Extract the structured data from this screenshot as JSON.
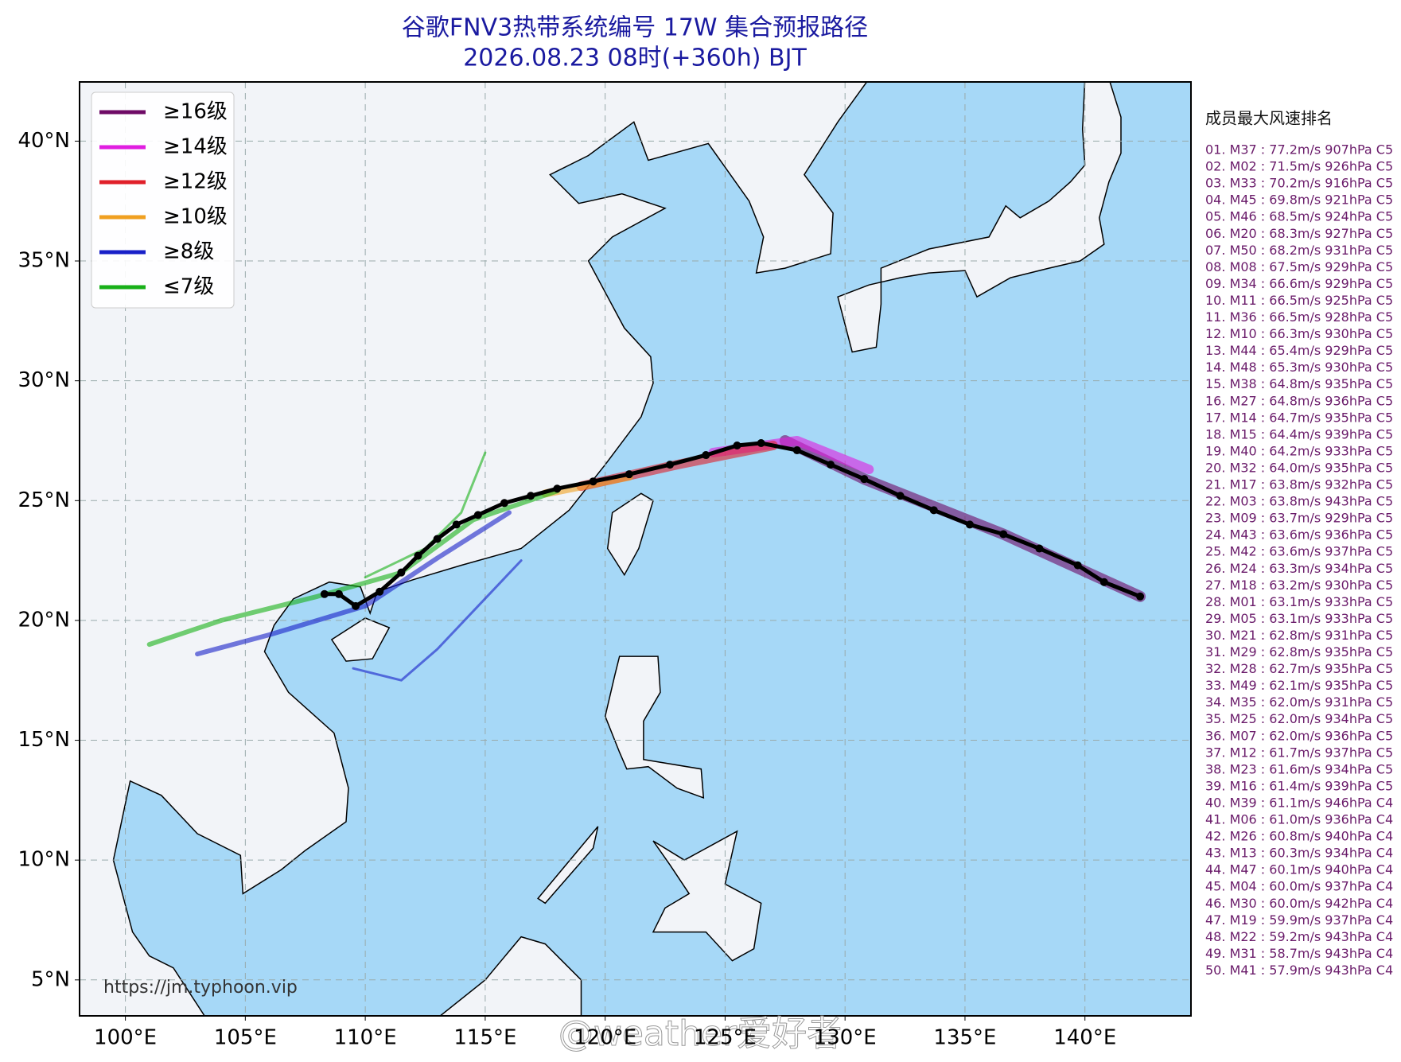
{
  "header": {
    "title": "谷歌FNV3热带系统编号 17W 集合预报路径",
    "subtitle": "2026.08.23 08时(+360h) BJT"
  },
  "map": {
    "xlim": [
      98.09,
      144.42
    ],
    "ylim": [
      3.5,
      42.47
    ],
    "xticks": [
      {
        "value": 100,
        "label": "100°E"
      },
      {
        "value": 105,
        "label": "105°E"
      },
      {
        "value": 110,
        "label": "110°E"
      },
      {
        "value": 115,
        "label": "115°E"
      },
      {
        "value": 120,
        "label": "120°E"
      },
      {
        "value": 125,
        "label": "125°E"
      },
      {
        "value": 130,
        "label": "130°E"
      },
      {
        "value": 135,
        "label": "135°E"
      },
      {
        "value": 140,
        "label": "140°E"
      }
    ],
    "yticks": [
      {
        "value": 5,
        "label": "5°N"
      },
      {
        "value": 10,
        "label": "10°N"
      },
      {
        "value": 15,
        "label": "15°N"
      },
      {
        "value": 20,
        "label": "20°N"
      },
      {
        "value": 25,
        "label": "25°N"
      },
      {
        "value": 30,
        "label": "30°N"
      },
      {
        "value": 35,
        "label": "35°N"
      },
      {
        "value": 40,
        "label": "40°N"
      }
    ],
    "mean_track": {
      "lon": [
        142.3,
        140.8,
        139.7,
        138.1,
        136.6,
        135.2,
        133.7,
        132.3,
        130.8,
        129.4,
        128.0,
        126.5,
        125.5,
        124.2,
        122.7,
        121.0,
        119.5,
        118.0,
        116.9,
        115.8,
        114.7,
        113.8,
        113.0,
        112.2,
        111.5,
        110.6,
        109.6,
        108.9,
        108.3
      ],
      "lat": [
        21.0,
        21.6,
        22.3,
        23.0,
        23.6,
        24.0,
        24.6,
        25.2,
        25.9,
        26.5,
        27.1,
        27.4,
        27.3,
        26.9,
        26.5,
        26.1,
        25.8,
        25.5,
        25.2,
        24.9,
        24.4,
        24.0,
        23.4,
        22.7,
        22.0,
        21.2,
        20.6,
        21.1,
        21.1
      ]
    }
  },
  "legend": [
    {
      "label": "≥16级",
      "color": "#6e0a66"
    },
    {
      "label": "≥14级",
      "color": "#e01ee0"
    },
    {
      "label": "≥12级",
      "color": "#e0202a"
    },
    {
      "label": "≥10级",
      "color": "#f0a020"
    },
    {
      "label": "≥8级",
      "color": "#1820c8"
    },
    {
      "label": "≤7级",
      "color": "#18b018"
    }
  ],
  "ranking": {
    "title": "成员最大风速排名",
    "items": [
      "01. M37 : 77.2m/s 907hPa C5",
      "02. M02 : 71.5m/s 926hPa C5",
      "03. M33 : 70.2m/s 916hPa C5",
      "04. M45 : 69.8m/s 921hPa C5",
      "05. M46 : 68.5m/s 924hPa C5",
      "06. M20 : 68.3m/s 927hPa C5",
      "07. M50 : 68.2m/s 931hPa C5",
      "08. M08 : 67.5m/s 929hPa C5",
      "09. M34 : 66.6m/s 929hPa C5",
      "10. M11 : 66.5m/s 925hPa C5",
      "11. M36 : 66.5m/s 928hPa C5",
      "12. M10 : 66.3m/s 930hPa C5",
      "13. M44 : 65.4m/s 929hPa C5",
      "14. M48 : 65.3m/s 930hPa C5",
      "15. M38 : 64.8m/s 935hPa C5",
      "16. M27 : 64.8m/s 936hPa C5",
      "17. M14 : 64.7m/s 935hPa C5",
      "18. M15 : 64.4m/s 939hPa C5",
      "19. M40 : 64.2m/s 933hPa C5",
      "20. M32 : 64.0m/s 935hPa C5",
      "21. M17 : 63.8m/s 932hPa C5",
      "22. M03 : 63.8m/s 943hPa C5",
      "23. M09 : 63.7m/s 929hPa C5",
      "24. M43 : 63.6m/s 936hPa C5",
      "25. M42 : 63.6m/s 937hPa C5",
      "26. M24 : 63.3m/s 934hPa C5",
      "27. M18 : 63.2m/s 930hPa C5",
      "28. M01 : 63.1m/s 933hPa C5",
      "29. M05 : 63.1m/s 933hPa C5",
      "30. M21 : 62.8m/s 931hPa C5",
      "31. M29 : 62.8m/s 935hPa C5",
      "32. M28 : 62.7m/s 935hPa C5",
      "33. M49 : 62.1m/s 935hPa C5",
      "34. M35 : 62.0m/s 931hPa C5",
      "35. M25 : 62.0m/s 934hPa C5",
      "36. M07 : 62.0m/s 936hPa C5",
      "37. M12 : 61.7m/s 937hPa C5",
      "38. M23 : 61.6m/s 934hPa C5",
      "39. M16 : 61.4m/s 939hPa C5",
      "40. M39 : 61.1m/s 946hPa C4",
      "41. M06 : 61.0m/s 936hPa C4",
      "42. M26 : 60.8m/s 940hPa C4",
      "43. M13 : 60.3m/s 934hPa C4",
      "44. M47 : 60.1m/s 940hPa C4",
      "45. M04 : 60.0m/s 937hPa C4",
      "46. M30 : 60.0m/s 942hPa C4",
      "47. M19 : 59.9m/s 937hPa C4",
      "48. M22 : 59.2m/s 943hPa C4",
      "49. M31 : 58.7m/s 943hPa C4",
      "50. M41 : 57.9m/s 943hPa C4"
    ]
  },
  "source": "https://jm.typhoon.vip",
  "watermark": "@weather爱好者"
}
